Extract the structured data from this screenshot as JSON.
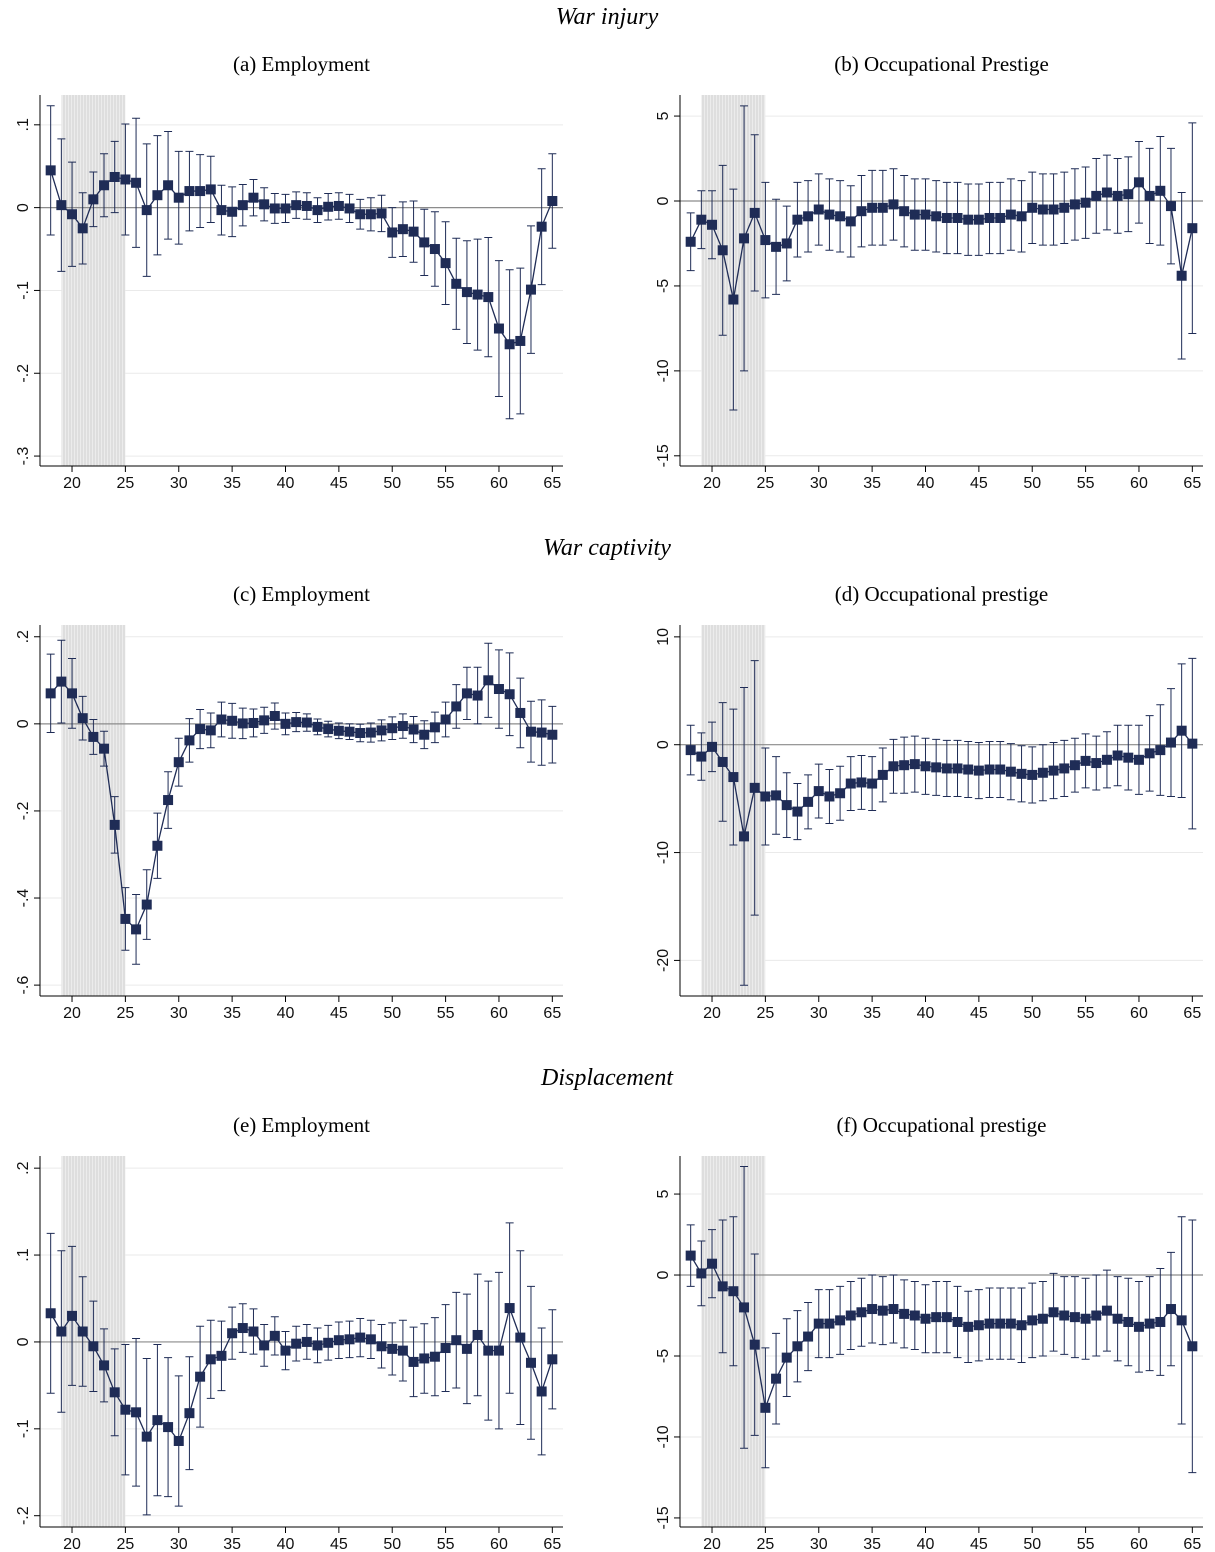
{
  "sections": [
    "War injury",
    "War captivity",
    "Displacement"
  ],
  "chart_data": [
    {
      "type": "line",
      "title": "(a) Employment",
      "x": [
        18,
        19,
        20,
        21,
        22,
        23,
        24,
        25,
        26,
        27,
        28,
        29,
        30,
        31,
        32,
        33,
        34,
        35,
        36,
        37,
        38,
        39,
        40,
        41,
        42,
        43,
        44,
        45,
        46,
        47,
        48,
        49,
        50,
        51,
        52,
        53,
        54,
        55,
        56,
        57,
        58,
        59,
        60,
        61,
        62,
        63,
        64,
        65
      ],
      "xlim": [
        17,
        66
      ],
      "xticks": [
        20,
        25,
        30,
        35,
        40,
        45,
        50,
        55,
        60,
        65
      ],
      "ylim": [
        -0.312,
        0.136
      ],
      "yticks": [
        {
          "value": -0.3,
          "label": "-.3"
        },
        {
          "value": -0.2,
          "label": "-.2"
        },
        {
          "value": -0.1,
          "label": "-.1"
        },
        0,
        {
          "value": 0.1,
          "label": ".1"
        }
      ],
      "grid": true,
      "reference_line": 0,
      "shaded_region": [
        19,
        25
      ],
      "series": [
        {
          "color": "#1f2c56",
          "values": [
            0.045,
            0.003,
            -0.008,
            -0.025,
            0.01,
            0.027,
            0.037,
            0.034,
            0.03,
            -0.003,
            0.015,
            0.027,
            0.012,
            0.02,
            0.02,
            0.022,
            -0.003,
            -0.005,
            0.003,
            0.012,
            0.004,
            -0.001,
            -0.001,
            0.003,
            0.002,
            -0.003,
            0.001,
            0.002,
            -0.001,
            -0.008,
            -0.008,
            -0.007,
            -0.03,
            -0.026,
            -0.029,
            -0.042,
            -0.05,
            -0.067,
            -0.092,
            -0.102,
            -0.105,
            -0.108,
            -0.146,
            -0.165,
            -0.161,
            -0.099,
            -0.023,
            0.008
          ],
          "errors": [
            0.078,
            0.08,
            0.063,
            0.043,
            0.033,
            0.038,
            0.043,
            0.067,
            0.078,
            0.08,
            0.072,
            0.065,
            0.056,
            0.048,
            0.044,
            0.04,
            0.03,
            0.03,
            0.025,
            0.022,
            0.02,
            0.018,
            0.017,
            0.016,
            0.016,
            0.015,
            0.016,
            0.016,
            0.017,
            0.018,
            0.02,
            0.022,
            0.03,
            0.033,
            0.037,
            0.04,
            0.045,
            0.05,
            0.055,
            0.062,
            0.067,
            0.072,
            0.082,
            0.09,
            0.088,
            0.077,
            0.07,
            0.057
          ]
        }
      ]
    },
    {
      "type": "line",
      "title": "(b) Occupational Prestige",
      "x": [
        18,
        19,
        20,
        21,
        22,
        23,
        24,
        25,
        26,
        27,
        28,
        29,
        30,
        31,
        32,
        33,
        34,
        35,
        36,
        37,
        38,
        39,
        40,
        41,
        42,
        43,
        44,
        45,
        46,
        47,
        48,
        49,
        50,
        51,
        52,
        53,
        54,
        55,
        56,
        57,
        58,
        59,
        60,
        61,
        62,
        63,
        64,
        65
      ],
      "xlim": [
        17,
        66
      ],
      "xticks": [
        20,
        25,
        30,
        35,
        40,
        45,
        50,
        55,
        60,
        65
      ],
      "ylim": [
        -15.6,
        6.24
      ],
      "yticks": [
        -15,
        -10,
        -5,
        0,
        5
      ],
      "grid": true,
      "reference_line": 0,
      "shaded_region": [
        19,
        25
      ],
      "series": [
        {
          "color": "#1f2c56",
          "values": [
            -2.4,
            -1.1,
            -1.4,
            -2.9,
            -5.8,
            -2.2,
            -0.7,
            -2.3,
            -2.7,
            -2.5,
            -1.1,
            -0.9,
            -0.5,
            -0.8,
            -0.9,
            -1.2,
            -0.6,
            -0.4,
            -0.4,
            -0.2,
            -0.6,
            -0.8,
            -0.8,
            -0.9,
            -1.0,
            -1.0,
            -1.1,
            -1.1,
            -1.0,
            -1.0,
            -0.8,
            -0.9,
            -0.4,
            -0.5,
            -0.5,
            -0.4,
            -0.2,
            -0.1,
            0.3,
            0.5,
            0.3,
            0.4,
            1.1,
            0.3,
            0.6,
            -0.3,
            -4.4,
            -1.6
          ],
          "errors": [
            1.7,
            1.7,
            2.0,
            5.0,
            6.5,
            7.8,
            4.6,
            3.4,
            2.8,
            2.2,
            2.2,
            2.1,
            2.1,
            2.1,
            2.1,
            2.1,
            2.1,
            2.2,
            2.2,
            2.1,
            2.1,
            2.1,
            2.1,
            2.1,
            2.1,
            2.1,
            2.1,
            2.1,
            2.1,
            2.1,
            2.1,
            2.1,
            2.1,
            2.1,
            2.1,
            2.1,
            2.1,
            2.1,
            2.2,
            2.2,
            2.2,
            2.2,
            2.4,
            2.8,
            3.2,
            3.4,
            4.9,
            6.2
          ]
        }
      ]
    },
    {
      "type": "line",
      "title": "(c) Employment",
      "x": [
        18,
        19,
        20,
        21,
        22,
        23,
        24,
        25,
        26,
        27,
        28,
        29,
        30,
        31,
        32,
        33,
        34,
        35,
        36,
        37,
        38,
        39,
        40,
        41,
        42,
        43,
        44,
        45,
        46,
        47,
        48,
        49,
        50,
        51,
        52,
        53,
        54,
        55,
        56,
        57,
        58,
        59,
        60,
        61,
        62,
        63,
        64,
        65
      ],
      "xlim": [
        17,
        66
      ],
      "xticks": [
        20,
        25,
        30,
        35,
        40,
        45,
        50,
        55,
        60,
        65
      ],
      "ylim": [
        -0.625,
        0.227
      ],
      "yticks": [
        {
          "value": -0.6,
          "label": "-.6"
        },
        {
          "value": -0.4,
          "label": "-.4"
        },
        {
          "value": -0.2,
          "label": "-.2"
        },
        0,
        {
          "value": 0.2,
          "label": ".2"
        }
      ],
      "grid": true,
      "reference_line": 0,
      "shaded_region": [
        19,
        25
      ],
      "series": [
        {
          "color": "#1f2c56",
          "values": [
            0.07,
            0.097,
            0.07,
            0.013,
            -0.03,
            -0.057,
            -0.232,
            -0.448,
            -0.472,
            -0.415,
            -0.28,
            -0.175,
            -0.088,
            -0.038,
            -0.012,
            -0.015,
            0.01,
            0.007,
            0.001,
            0.002,
            0.008,
            0.018,
            0.0,
            0.004,
            0.003,
            -0.007,
            -0.012,
            -0.016,
            -0.018,
            -0.021,
            -0.02,
            -0.015,
            -0.01,
            -0.005,
            -0.013,
            -0.025,
            -0.008,
            0.01,
            0.04,
            0.07,
            0.065,
            0.1,
            0.08,
            0.068,
            0.025,
            -0.018,
            -0.02,
            -0.025
          ],
          "errors": [
            0.09,
            0.095,
            0.08,
            0.05,
            0.04,
            0.04,
            0.065,
            0.072,
            0.08,
            0.08,
            0.075,
            0.065,
            0.055,
            0.05,
            0.045,
            0.04,
            0.04,
            0.04,
            0.035,
            0.032,
            0.03,
            0.03,
            0.025,
            0.022,
            0.02,
            0.018,
            0.018,
            0.018,
            0.018,
            0.02,
            0.022,
            0.024,
            0.026,
            0.028,
            0.03,
            0.032,
            0.035,
            0.04,
            0.05,
            0.06,
            0.065,
            0.085,
            0.09,
            0.095,
            0.08,
            0.07,
            0.075,
            0.065
          ]
        }
      ]
    },
    {
      "type": "line",
      "title": "(d) Occupational prestige",
      "x": [
        18,
        19,
        20,
        21,
        22,
        23,
        24,
        25,
        26,
        27,
        28,
        29,
        30,
        31,
        32,
        33,
        34,
        35,
        36,
        37,
        38,
        39,
        40,
        41,
        42,
        43,
        44,
        45,
        46,
        47,
        48,
        49,
        50,
        51,
        52,
        53,
        54,
        55,
        56,
        57,
        58,
        59,
        60,
        61,
        62,
        63,
        64,
        65
      ],
      "xlim": [
        17,
        66
      ],
      "xticks": [
        20,
        25,
        30,
        35,
        40,
        45,
        50,
        55,
        60,
        65
      ],
      "ylim": [
        -23.3,
        11.1
      ],
      "yticks": [
        -20,
        -10,
        0,
        10
      ],
      "grid": true,
      "reference_line": 0,
      "shaded_region": [
        19,
        25
      ],
      "series": [
        {
          "color": "#1f2c56",
          "values": [
            -0.5,
            -1.1,
            -0.2,
            -1.6,
            -3.0,
            -8.5,
            -4.0,
            -4.8,
            -4.7,
            -5.6,
            -6.2,
            -5.3,
            -4.3,
            -4.8,
            -4.5,
            -3.6,
            -3.5,
            -3.6,
            -2.8,
            -2.0,
            -1.9,
            -1.8,
            -2.0,
            -2.1,
            -2.2,
            -2.2,
            -2.3,
            -2.4,
            -2.3,
            -2.3,
            -2.5,
            -2.7,
            -2.8,
            -2.6,
            -2.4,
            -2.2,
            -1.9,
            -1.5,
            -1.7,
            -1.4,
            -1.0,
            -1.2,
            -1.4,
            -0.8,
            -0.5,
            0.2,
            1.3,
            0.1
          ],
          "errors": [
            2.3,
            2.2,
            2.3,
            5.5,
            6.3,
            13.8,
            11.8,
            4.5,
            3.6,
            3.0,
            2.6,
            2.5,
            2.5,
            2.5,
            2.5,
            2.5,
            2.5,
            2.5,
            2.5,
            2.5,
            2.6,
            2.6,
            2.6,
            2.6,
            2.6,
            2.6,
            2.6,
            2.6,
            2.6,
            2.6,
            2.6,
            2.6,
            2.6,
            2.6,
            2.6,
            2.6,
            2.5,
            2.5,
            2.5,
            2.6,
            2.8,
            3.0,
            3.2,
            3.5,
            4.2,
            5.0,
            6.2,
            7.9
          ]
        }
      ]
    },
    {
      "type": "line",
      "title": "(e) Employment",
      "x": [
        18,
        19,
        20,
        21,
        22,
        23,
        24,
        25,
        26,
        27,
        28,
        29,
        30,
        31,
        32,
        33,
        34,
        35,
        36,
        37,
        38,
        39,
        40,
        41,
        42,
        43,
        44,
        45,
        46,
        47,
        48,
        49,
        50,
        51,
        52,
        53,
        54,
        55,
        56,
        57,
        58,
        59,
        60,
        61,
        62,
        63,
        64,
        65
      ],
      "xlim": [
        17,
        66
      ],
      "xticks": [
        20,
        25,
        30,
        35,
        40,
        45,
        50,
        55,
        60,
        65
      ],
      "ylim": [
        -0.213,
        0.214
      ],
      "yticks": [
        {
          "value": -0.2,
          "label": "-.2"
        },
        {
          "value": -0.1,
          "label": "-.1"
        },
        0,
        {
          "value": 0.1,
          "label": ".1"
        },
        {
          "value": 0.2,
          "label": ".2"
        }
      ],
      "grid": true,
      "reference_line": 0,
      "shaded_region": [
        19,
        25
      ],
      "series": [
        {
          "color": "#1f2c56",
          "values": [
            0.033,
            0.012,
            0.03,
            0.012,
            -0.005,
            -0.027,
            -0.058,
            -0.078,
            -0.081,
            -0.109,
            -0.09,
            -0.098,
            -0.114,
            -0.082,
            -0.04,
            -0.02,
            -0.016,
            0.01,
            0.016,
            0.012,
            -0.004,
            0.007,
            -0.01,
            -0.002,
            0.0,
            -0.004,
            -0.001,
            0.002,
            0.003,
            0.005,
            0.003,
            -0.005,
            -0.008,
            -0.01,
            -0.023,
            -0.019,
            -0.017,
            -0.007,
            0.002,
            -0.008,
            0.008,
            -0.01,
            -0.01,
            0.039,
            0.005,
            -0.024,
            -0.057,
            -0.02
          ],
          "errors": [
            0.092,
            0.093,
            0.08,
            0.063,
            0.052,
            0.042,
            0.05,
            0.075,
            0.085,
            0.09,
            0.087,
            0.08,
            0.075,
            0.065,
            0.058,
            0.045,
            0.04,
            0.03,
            0.028,
            0.026,
            0.024,
            0.022,
            0.022,
            0.02,
            0.02,
            0.02,
            0.02,
            0.021,
            0.021,
            0.022,
            0.022,
            0.025,
            0.03,
            0.035,
            0.04,
            0.04,
            0.045,
            0.05,
            0.055,
            0.063,
            0.07,
            0.08,
            0.09,
            0.098,
            0.1,
            0.088,
            0.073,
            0.057
          ]
        }
      ]
    },
    {
      "type": "line",
      "title": "(f) Occupational prestige",
      "x": [
        18,
        19,
        20,
        21,
        22,
        23,
        24,
        25,
        26,
        27,
        28,
        29,
        30,
        31,
        32,
        33,
        34,
        35,
        36,
        37,
        38,
        39,
        40,
        41,
        42,
        43,
        44,
        45,
        46,
        47,
        48,
        49,
        50,
        51,
        52,
        53,
        54,
        55,
        56,
        57,
        58,
        59,
        60,
        61,
        62,
        63,
        64,
        65
      ],
      "xlim": [
        17,
        66
      ],
      "xticks": [
        20,
        25,
        30,
        35,
        40,
        45,
        50,
        55,
        60,
        65
      ],
      "ylim": [
        -15.56,
        7.35
      ],
      "yticks": [
        -15,
        -10,
        -5,
        0,
        5
      ],
      "grid": true,
      "reference_line": 0,
      "shaded_region": [
        19,
        25
      ],
      "series": [
        {
          "color": "#1f2c56",
          "values": [
            1.2,
            0.1,
            0.7,
            -0.7,
            -1.0,
            -2.0,
            -4.3,
            -8.2,
            -6.4,
            -5.1,
            -4.4,
            -3.8,
            -3.0,
            -3.0,
            -2.8,
            -2.5,
            -2.3,
            -2.1,
            -2.2,
            -2.1,
            -2.4,
            -2.5,
            -2.7,
            -2.6,
            -2.6,
            -2.9,
            -3.2,
            -3.1,
            -3.0,
            -3.0,
            -3.0,
            -3.1,
            -2.8,
            -2.7,
            -2.3,
            -2.5,
            -2.6,
            -2.7,
            -2.5,
            -2.2,
            -2.7,
            -2.9,
            -3.2,
            -3.0,
            -2.9,
            -2.1,
            -2.8,
            -4.4
          ],
          "errors": [
            1.9,
            2.0,
            2.1,
            4.1,
            4.6,
            8.7,
            5.6,
            3.7,
            2.8,
            2.4,
            2.2,
            2.1,
            2.1,
            2.1,
            2.1,
            2.1,
            2.1,
            2.1,
            2.1,
            2.1,
            2.1,
            2.1,
            2.1,
            2.2,
            2.2,
            2.2,
            2.2,
            2.2,
            2.2,
            2.2,
            2.2,
            2.3,
            2.3,
            2.3,
            2.4,
            2.4,
            2.5,
            2.5,
            2.5,
            2.5,
            2.6,
            2.7,
            2.8,
            2.9,
            3.3,
            3.5,
            6.4,
            7.8
          ]
        }
      ]
    }
  ]
}
